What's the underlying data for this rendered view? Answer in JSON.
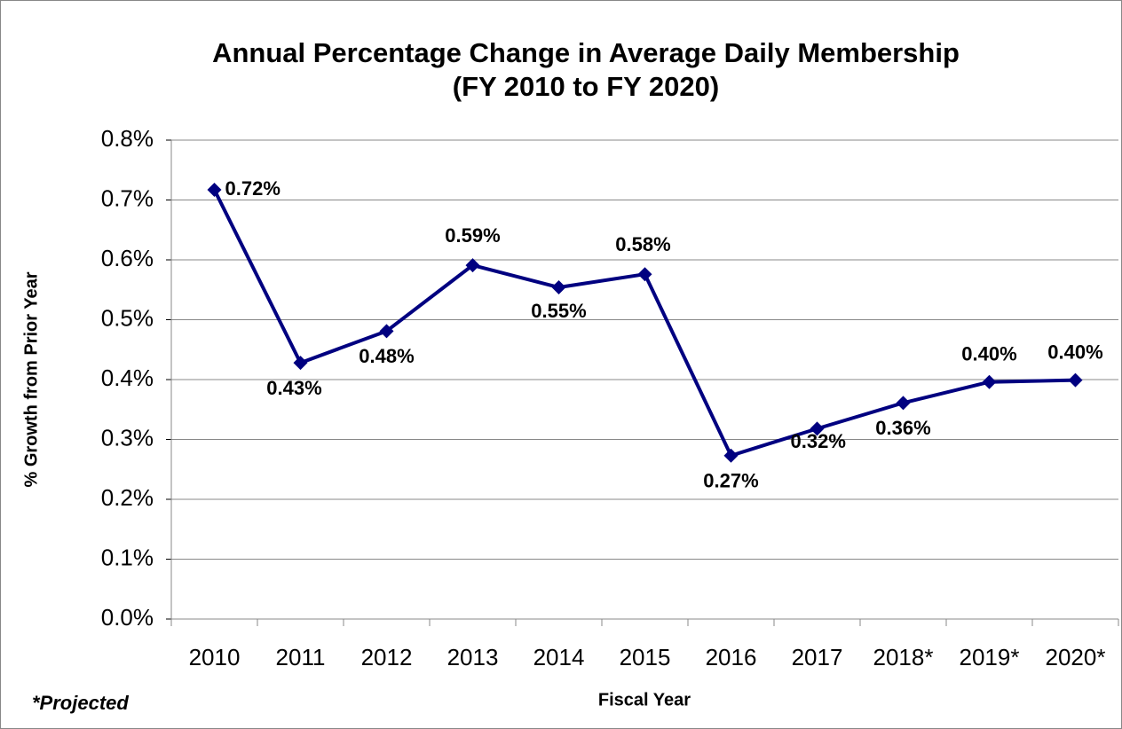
{
  "chart_data": {
    "type": "line",
    "title": "Annual Percentage Change in Average Daily Membership",
    "subtitle": "(FY 2010 to FY 2020)",
    "y_label": "% Growth from Prior Year",
    "x_label": "Fiscal Year",
    "annotation": "*Projected",
    "categories": [
      "2010",
      "2011",
      "2012",
      "2013",
      "2014",
      "2015",
      "2016",
      "2017",
      "2018*",
      "2019*",
      "2020*"
    ],
    "series": [
      {
        "name": "% Growth",
        "color": "#000080",
        "values": [
          0.717,
          0.428,
          0.481,
          0.591,
          0.554,
          0.576,
          0.273,
          0.318,
          0.361,
          0.396,
          0.399
        ],
        "value_labels": [
          "0.72%",
          "0.43%",
          "0.48%",
          "0.59%",
          "0.55%",
          "0.58%",
          "0.27%",
          "0.32%",
          "0.36%",
          "0.40%",
          "0.40%"
        ]
      }
    ],
    "ylim": [
      0,
      0.8
    ],
    "yticks": [
      {
        "value": 0,
        "label": "0.0%"
      },
      {
        "value": 0.1,
        "label": "0.1%"
      },
      {
        "value": 0.2,
        "label": "0.2%"
      },
      {
        "value": 0.3,
        "label": "0.3%"
      },
      {
        "value": 0.4,
        "label": "0.4%"
      },
      {
        "value": 0.5,
        "label": "0.5%"
      },
      {
        "value": 0.6,
        "label": "0.6%"
      },
      {
        "value": 0.7,
        "label": "0.7%"
      },
      {
        "value": 0.8,
        "label": "0.8%"
      }
    ],
    "grid": true
  }
}
